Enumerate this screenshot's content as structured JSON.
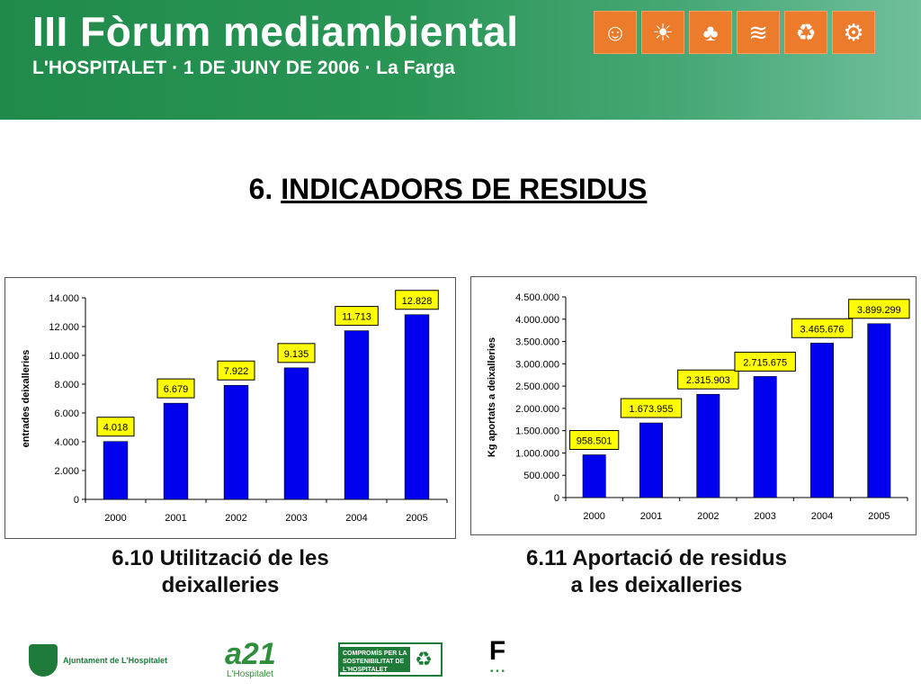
{
  "banner": {
    "title": "III Fòrum mediambiental",
    "subtitle": "L'HOSPITALET · 1 DE JUNY DE 2006 · La Farga",
    "icons": [
      "people-icon",
      "sun-icon",
      "tree-icon",
      "water-icon",
      "recycle-icon",
      "bicycle-icon"
    ],
    "accent_color": "#ec7b2c",
    "background_color": "#2a9656"
  },
  "page": {
    "title_prefix": "6.",
    "title_main": "INDICADORS DE RESIDUS"
  },
  "captions": {
    "left_line1": "6.10 Utilització de les",
    "left_line2": "deixalleries",
    "right_line1": "6.11 Aportació de residus",
    "right_line2": "a les deixalleries"
  },
  "logos": {
    "ajuntament": "Ajuntament de L'Hospitalet",
    "a21": "a21",
    "a21_sub": "L'Hospitalet",
    "sostenibilitat": "COMPROMÍS PER LA SOSTENIBILITAT DE L'HOSPITALET",
    "forum_letter": "F"
  },
  "chart_data": [
    {
      "type": "bar",
      "categories": [
        "2000",
        "2001",
        "2002",
        "2003",
        "2004",
        "2005"
      ],
      "values": [
        4018,
        6679,
        7922,
        9135,
        11713,
        12828
      ],
      "data_labels": [
        "4.018",
        "6.679",
        "7.922",
        "9.135",
        "11.713",
        "12.828"
      ],
      "ylabel": "entrades deixalleries",
      "ylim": [
        0,
        14000
      ],
      "yticks": [
        0,
        2000,
        4000,
        6000,
        8000,
        10000,
        12000,
        14000
      ],
      "ytick_labels": [
        "0",
        "2.000",
        "4.000",
        "6.000",
        "8.000",
        "10.000",
        "12.000",
        "14.000"
      ],
      "bar_color": "#0000ee",
      "label_color": "#ffff00",
      "grid": false
    },
    {
      "type": "bar",
      "categories": [
        "2000",
        "2001",
        "2002",
        "2003",
        "2004",
        "2005"
      ],
      "values": [
        958501,
        1673955,
        2315903,
        2715675,
        3465676,
        3899299
      ],
      "data_labels": [
        "958.501",
        "1.673.955",
        "2.315.903",
        "2.715.675",
        "3.465.676",
        "3.899.299"
      ],
      "ylabel": "Kg aportats a deixalleries",
      "ylim": [
        0,
        4500000
      ],
      "yticks": [
        0,
        500000,
        1000000,
        1500000,
        2000000,
        2500000,
        3000000,
        3500000,
        4000000,
        4500000
      ],
      "ytick_labels": [
        "0",
        "500.000",
        "1.000.000",
        "1.500.000",
        "2.000.000",
        "2.500.000",
        "3.000.000",
        "3.500.000",
        "4.000.000",
        "4.500.000"
      ],
      "bar_color": "#0000ee",
      "label_color": "#ffff00",
      "grid": false
    }
  ]
}
